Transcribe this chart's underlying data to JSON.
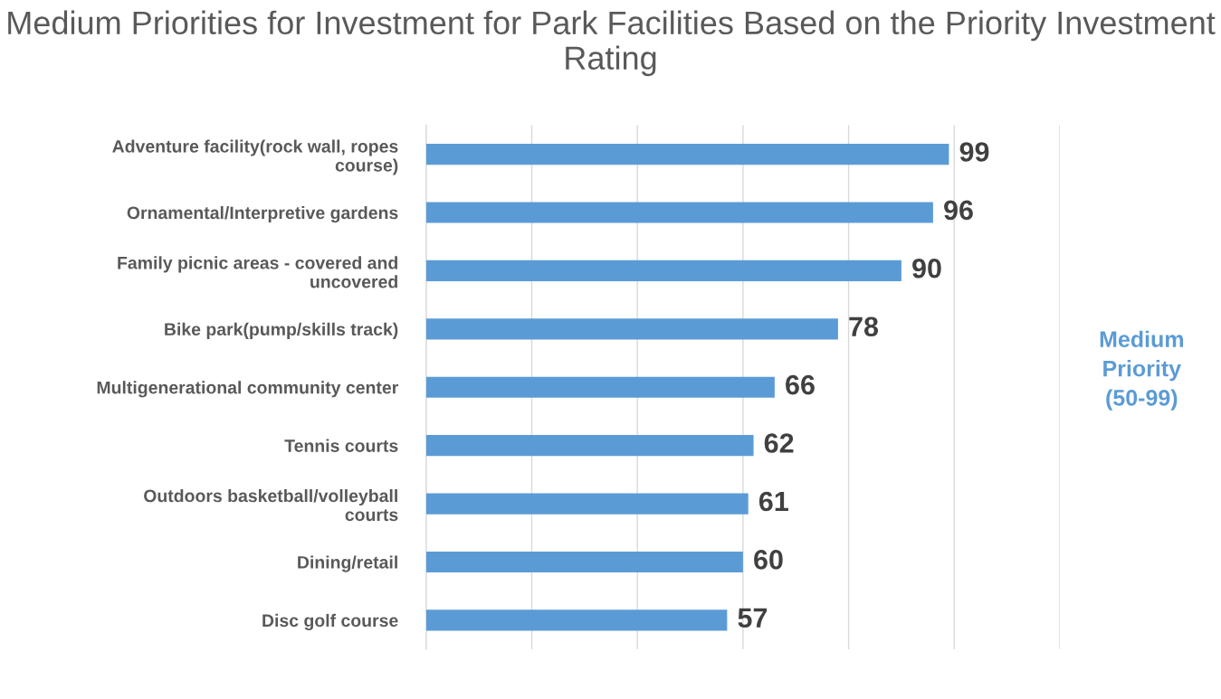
{
  "chart_data": {
    "type": "bar",
    "orientation": "horizontal",
    "title": "Medium Priorities for Investment for Park Facilities Based on the Priority Investment Rating",
    "categories": [
      "Adventure facility(rock wall, ropes course)",
      "Ornamental/Interpretive gardens",
      "Family picnic areas - covered and uncovered",
      "Bike park(pump/skills track)",
      "Multigenerational community center",
      "Tennis courts",
      "Outdoors basketball/volleyball courts",
      "Dining/retail",
      "Disc golf course"
    ],
    "values": [
      99,
      96,
      90,
      78,
      66,
      62,
      61,
      60,
      57
    ],
    "color": "#5b9bd5",
    "data_labels": true,
    "xlim": [
      0,
      120
    ],
    "xticks": [
      {
        "value": 0,
        "label": null
      },
      {
        "value": 20,
        "label": null
      },
      {
        "value": 40,
        "label": null
      },
      {
        "value": 60,
        "label": null
      },
      {
        "value": 80,
        "label": null
      },
      {
        "value": 100,
        "label": null
      },
      {
        "value": 120,
        "label": null
      }
    ],
    "tick_labels": "y",
    "grid": "x",
    "annotations": [
      "Medium\nPriority\n(50-99)"
    ]
  }
}
